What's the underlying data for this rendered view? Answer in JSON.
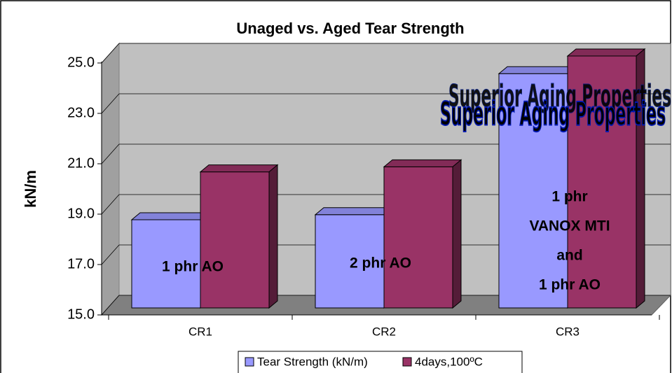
{
  "chart_data": {
    "type": "bar3d",
    "title": "Unaged vs. Aged Tear Strength",
    "y_label": "kN/m",
    "categories": [
      "CR1",
      "CR2",
      "CR3"
    ],
    "series": [
      {
        "name": "Tear Strength (kN/m)",
        "color": "#9999ff",
        "values": [
          18.5,
          18.7,
          24.3
        ]
      },
      {
        "name": "4days,100ºC",
        "color": "#993366",
        "values": [
          20.4,
          20.6,
          25.0
        ]
      }
    ],
    "ylim": [
      15,
      25
    ],
    "yticks": [
      {
        "value": 15,
        "label": "15.0"
      },
      {
        "value": 17,
        "label": "17.0"
      },
      {
        "value": 19,
        "label": "19.0"
      },
      {
        "value": 21,
        "label": "21.0"
      },
      {
        "value": 23,
        "label": "23.0"
      },
      {
        "value": 25,
        "label": "25.0"
      }
    ],
    "grid": true,
    "legend": "bottom",
    "annotations": [
      {
        "lines": [
          "1 phr AO"
        ]
      },
      {
        "lines": [
          "2 phr AO"
        ]
      },
      {
        "lines": [
          "1 phr",
          "VANOX MTI",
          "and",
          "1 phr AO"
        ]
      }
    ],
    "callout": "Superior Aging Properties"
  }
}
